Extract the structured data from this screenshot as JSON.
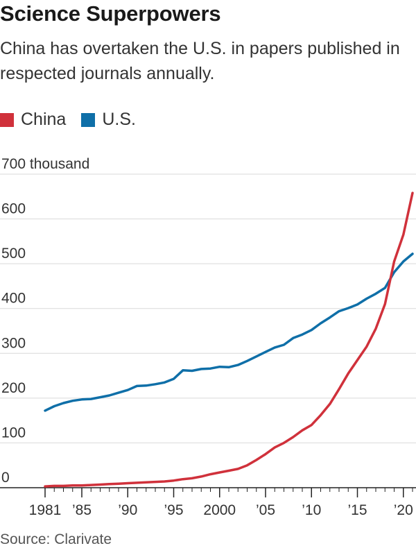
{
  "title": "Science Superpowers",
  "subtitle": "China has overtaken the U.S. in papers published in respected journals annually.",
  "source": "Source: Clarivate",
  "colors": {
    "china": "#d0313b",
    "us": "#0f6fa8",
    "grid": "#d9d9d9",
    "axis": "#222222"
  },
  "chart_data": {
    "type": "line",
    "title": "Science Superpowers",
    "xlabel": "",
    "ylabel": "",
    "ylim": [
      0,
      700
    ],
    "y_ticks": [
      0,
      100,
      200,
      300,
      400,
      500,
      600,
      700
    ],
    "y_tick_labels": [
      "0",
      "100",
      "200",
      "300",
      "400",
      "500",
      "600",
      "700 thousand"
    ],
    "xlim": [
      1980.5,
      2021.4
    ],
    "x_ticks": [
      1981,
      1985,
      1990,
      1995,
      2000,
      2005,
      2010,
      2015,
      2020
    ],
    "x_tick_labels": [
      "1981",
      "’85",
      "’90",
      "’95",
      "2000",
      "’05",
      "’10",
      "’15",
      "’20"
    ],
    "legend": "top-left",
    "x": [
      1981,
      1982,
      1983,
      1984,
      1985,
      1986,
      1987,
      1988,
      1989,
      1990,
      1991,
      1992,
      1993,
      1994,
      1995,
      1996,
      1997,
      1998,
      1999,
      2000,
      2001,
      2002,
      2003,
      2004,
      2005,
      2006,
      2007,
      2008,
      2009,
      2010,
      2011,
      2012,
      2013,
      2014,
      2015,
      2016,
      2017,
      2018,
      2019,
      2020,
      2021
    ],
    "series": [
      {
        "name": "China",
        "color_key": "china",
        "values": [
          3,
          4,
          4,
          5,
          5,
          6,
          7,
          8,
          9,
          10,
          11,
          12,
          13,
          14,
          16,
          19,
          21,
          25,
          30,
          34,
          38,
          42,
          50,
          62,
          75,
          90,
          100,
          113,
          128,
          140,
          162,
          187,
          220,
          255,
          285,
          315,
          355,
          410,
          505,
          565,
          658
        ]
      },
      {
        "name": "U.S.",
        "color_key": "us",
        "values": [
          172,
          182,
          189,
          194,
          197,
          198,
          202,
          206,
          212,
          218,
          227,
          228,
          231,
          235,
          243,
          262,
          261,
          265,
          266,
          270,
          269,
          274,
          283,
          293,
          303,
          313,
          319,
          334,
          342,
          352,
          367,
          380,
          394,
          401,
          409,
          422,
          433,
          446,
          481,
          505,
          522
        ]
      }
    ]
  }
}
